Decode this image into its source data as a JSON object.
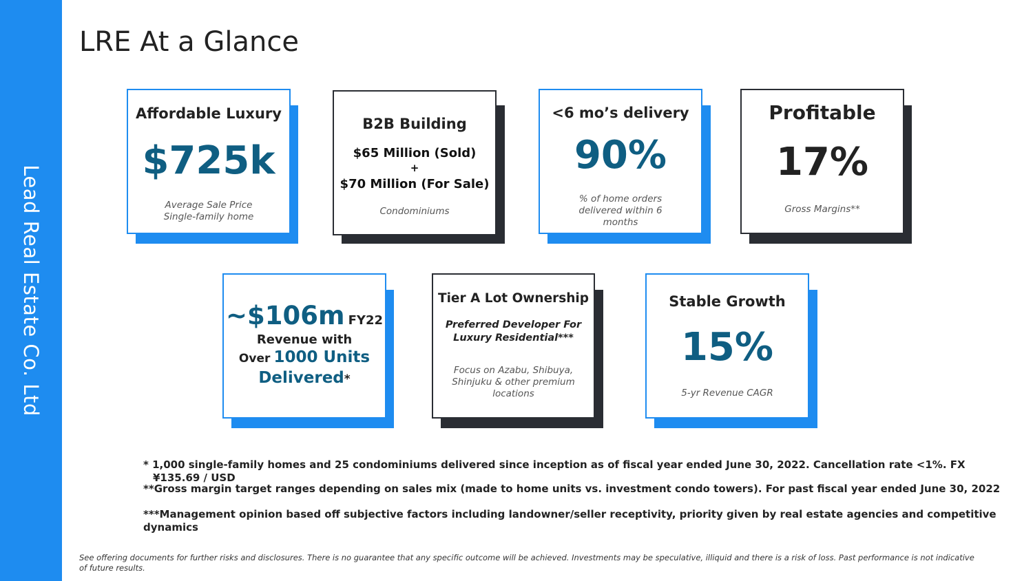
{
  "sidebar": {
    "company": "Lead Real Estate Co. Ltd"
  },
  "page": {
    "title": "LRE At a Glance"
  },
  "cards": {
    "luxury": {
      "heading": "Affordable Luxury",
      "value": "$725k",
      "sub1": "Average Sale Price",
      "sub2": "Single-family home"
    },
    "b2b": {
      "heading": "B2B Building",
      "line1": "$65 Million (Sold)",
      "plus": "+",
      "line2": "$70 Million (For Sale)",
      "sub": "Condominiums"
    },
    "delivery": {
      "heading": "<6 mo’s delivery",
      "value": "90%",
      "sub1": "% of home orders",
      "sub2": "delivered within 6",
      "sub3": "months"
    },
    "profitable": {
      "heading": "Profitable",
      "value": "17%",
      "sub": "Gross Margins**"
    },
    "revenue": {
      "value": "~$106m",
      "fy": "FY22",
      "line2": "Revenue with",
      "over": "Over",
      "units": "1000 Units",
      "delivered": "Delivered",
      "star": "*"
    },
    "tier": {
      "heading": "Tier A Lot Ownership",
      "pref1": "Preferred Developer For",
      "pref2": "Luxury Residential***",
      "sub1": "Focus on Azabu, Shibuya,",
      "sub2": "Shinjuku & other premium",
      "sub3": "locations"
    },
    "growth": {
      "heading": "Stable Growth",
      "value": "15%",
      "sub": "5-yr Revenue CAGR"
    }
  },
  "footnotes": {
    "f1a": "* 1,000 single-family homes and 25 condominiums delivered since inception as of fiscal year ended June 30, 2022. Cancellation rate <1%. FX",
    "f1b": "¥135.69 / USD",
    "f2": "**Gross margin target ranges depending on sales mix (made to home units vs. investment condo towers). For past fiscal year ended June 30, 2022",
    "f3": "***Management opinion based off subjective factors  including landowner/seller receptivity, priority given by real estate agencies and competitive dynamics"
  },
  "disclaimer": "See offering documents for further risks and disclosures. There is no guarantee that any specific outcome will be achieved.  Investments may be speculative, illiquid and there is a  risk of loss. Past performance is not indicative of future results.",
  "colors": {
    "accent": "#1e8cf0",
    "dark": "#2a2d33",
    "teal": "#0f5e82"
  }
}
